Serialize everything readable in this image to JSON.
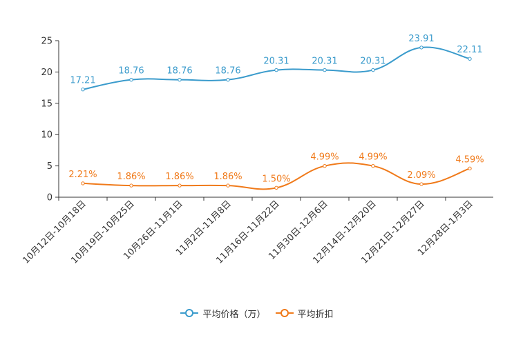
{
  "chart_data": {
    "type": "line",
    "categories": [
      "10月12日-10月18日",
      "10月19日-10月25日",
      "10月26日-11月1日",
      "11月2日-11月8日",
      "11月16日-11月22日",
      "11月30日-12月6日",
      "12月14日-12月20日",
      "12月21日-12月27日",
      "12月28日-1月3日"
    ],
    "series": [
      {
        "name": "平均价格（万）",
        "color": "#3a9bcc",
        "values": [
          17.21,
          18.76,
          18.76,
          18.76,
          20.31,
          20.31,
          20.31,
          23.91,
          22.11
        ],
        "labels": [
          "17.21",
          "18.76",
          "18.76",
          "18.76",
          "20.31",
          "20.31",
          "20.31",
          "23.91",
          "22.11"
        ]
      },
      {
        "name": "平均折扣",
        "color": "#f07a1a",
        "values": [
          2.21,
          1.86,
          1.86,
          1.86,
          1.5,
          4.99,
          4.99,
          2.09,
          4.59
        ],
        "labels": [
          "2.21%",
          "1.86%",
          "1.86%",
          "1.86%",
          "1.50%",
          "4.99%",
          "4.99%",
          "2.09%",
          "4.59%"
        ]
      }
    ],
    "yticks": [
      "0",
      "5",
      "10",
      "15",
      "20",
      "25"
    ],
    "ylim": [
      0,
      25
    ],
    "title": "",
    "xlabel": "",
    "ylabel": "",
    "legend_position": "bottom-center",
    "grid": false
  }
}
